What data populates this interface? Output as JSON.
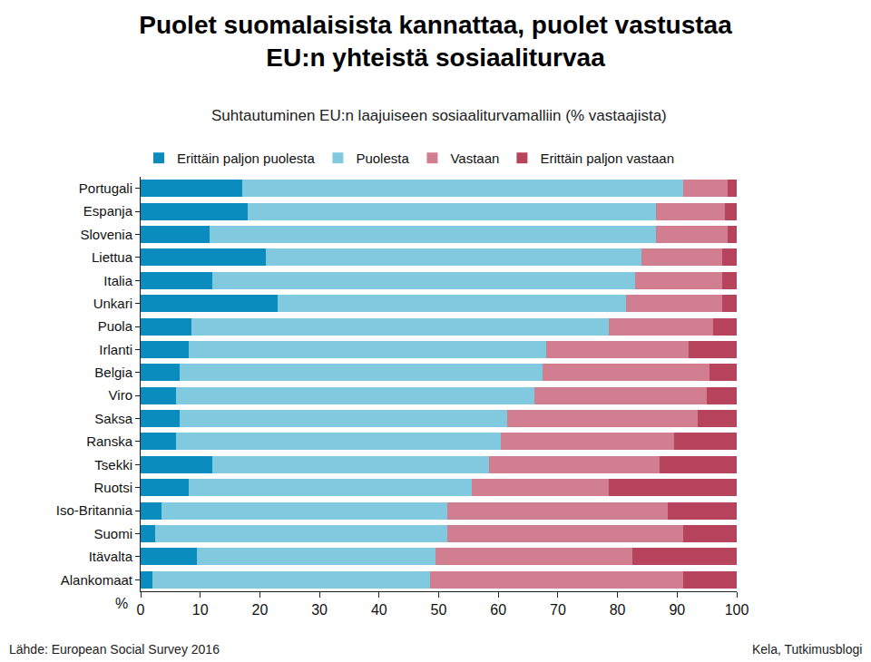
{
  "chart_data": {
    "type": "bar",
    "orientation": "horizontal",
    "stacked": true,
    "grid": false,
    "legend": "top",
    "title": "Puolet suomalaisista kannattaa, puolet vastustaa\nEU:n yhteistä sosiaaliturvaa",
    "subtitle": "Suhtautuminen EU:n laajuiseen sosiaaliturvamalliin (% vastaajista)",
    "x_label": "%",
    "source": "Lähde: European Social Survey 2016",
    "credit": "Kela, Tutkimusblogi",
    "categories": [
      "Portugali",
      "Espanja",
      "Slovenia",
      "Liettua",
      "Italia",
      "Unkari",
      "Puola",
      "Irlanti",
      "Belgia",
      "Viro",
      "Saksa",
      "Ranska",
      "Tsekki",
      "Ruotsi",
      "Iso-Britannia",
      "Suomi",
      "Itävalta",
      "Alankomaat"
    ],
    "series": [
      {
        "name": "Erittäin paljon puolesta",
        "color": "#0a8cbf",
        "values": [
          17,
          18,
          11.5,
          21,
          12,
          23,
          8.5,
          8,
          6.5,
          6,
          6.5,
          6,
          12,
          8,
          3.5,
          2.5,
          9.5,
          2
        ]
      },
      {
        "name": "Puolesta",
        "color": "#80c9df",
        "values": [
          74,
          68.5,
          75,
          63,
          71,
          58.5,
          70,
          60,
          61,
          60,
          55,
          54.5,
          46.5,
          47.5,
          48,
          49,
          40,
          46.5
        ]
      },
      {
        "name": "Vastaan",
        "color": "#d17f90",
        "values": [
          7.5,
          11.5,
          12,
          13.5,
          14.5,
          16,
          17.5,
          24,
          28,
          29,
          32,
          29,
          28.5,
          23,
          37,
          39.5,
          33,
          42.5
        ]
      },
      {
        "name": "Erittäin paljon vastaan",
        "color": "#b8435c",
        "values": [
          1.5,
          2,
          1.5,
          2.5,
          2.5,
          2.5,
          4,
          8,
          4.5,
          5,
          6.5,
          10.5,
          13,
          21.5,
          11.5,
          9,
          17.5,
          9
        ]
      }
    ],
    "xlim": [
      0,
      100
    ],
    "xticks": [
      0,
      10,
      20,
      30,
      40,
      50,
      60,
      70,
      80,
      90,
      100
    ]
  }
}
